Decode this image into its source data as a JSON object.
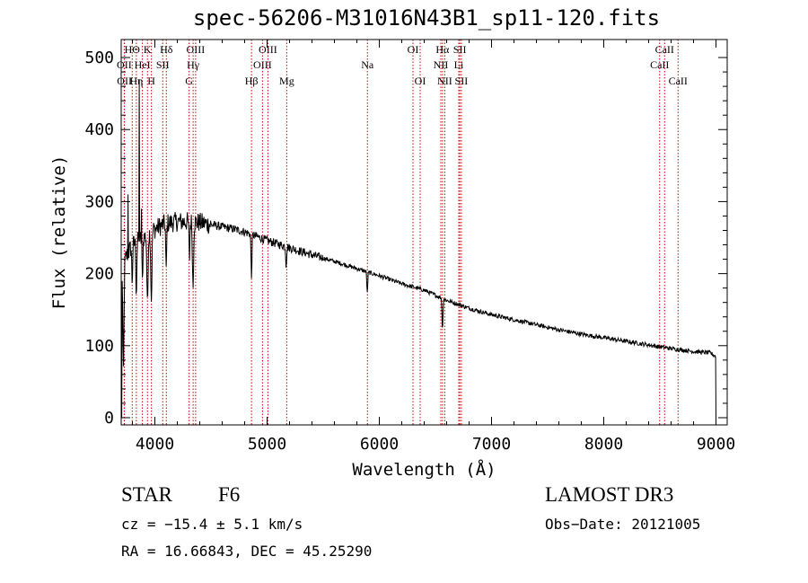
{
  "chart_data": {
    "type": "line",
    "title": "spec-56206-M31016N43B1_sp11-120.fits",
    "xlabel": "Wavelength (Å)",
    "ylabel": "Flux (relative)",
    "xlim": [
      3700,
      9100
    ],
    "ylim": [
      -10,
      525
    ],
    "xticks": [
      4000,
      5000,
      6000,
      7000,
      8000,
      9000
    ],
    "yticks": [
      0,
      100,
      200,
      300,
      400,
      500
    ],
    "series": [
      {
        "name": "spectrum",
        "continuum": [
          [
            3700,
            205
          ],
          [
            3750,
            225
          ],
          [
            3800,
            240
          ],
          [
            3900,
            250
          ],
          [
            4000,
            262
          ],
          [
            4100,
            270
          ],
          [
            4200,
            272
          ],
          [
            4300,
            272
          ],
          [
            4400,
            271
          ],
          [
            4500,
            268
          ],
          [
            4600,
            265
          ],
          [
            4700,
            262
          ],
          [
            4800,
            258
          ],
          [
            4900,
            252
          ],
          [
            5000,
            246
          ],
          [
            5200,
            236
          ],
          [
            5400,
            226
          ],
          [
            5600,
            217
          ],
          [
            5800,
            207
          ],
          [
            6000,
            197
          ],
          [
            6200,
            186
          ],
          [
            6400,
            177
          ],
          [
            6600,
            163
          ],
          [
            6800,
            152
          ],
          [
            7000,
            143
          ],
          [
            7200,
            136
          ],
          [
            7400,
            129
          ],
          [
            7600,
            122
          ],
          [
            7800,
            116
          ],
          [
            8000,
            111
          ],
          [
            8200,
            106
          ],
          [
            8400,
            101
          ],
          [
            8600,
            96
          ],
          [
            8800,
            92
          ],
          [
            8950,
            90
          ],
          [
            9000,
            85
          ]
        ],
        "absorption_features": [
          [
            3934,
            100
          ],
          [
            3969,
            95
          ],
          [
            3889,
            60
          ],
          [
            3835,
            70
          ],
          [
            3798,
            50
          ],
          [
            4101,
            70
          ],
          [
            4340,
            90
          ],
          [
            4308,
            50
          ],
          [
            4861,
            60
          ],
          [
            5170,
            25
          ],
          [
            5893,
            30
          ],
          [
            6563,
            45
          ],
          [
            3720,
            150
          ]
        ],
        "emission_spikes": [
          [
            3860,
            470
          ],
          [
            3760,
            310
          ],
          [
            3880,
            290
          ]
        ]
      }
    ],
    "lines": [
      {
        "label": "HΘ",
        "wave": 3798,
        "row": 0
      },
      {
        "label": "OII",
        "wave": 3727,
        "row": 1
      },
      {
        "label": "OII",
        "wave": 3729,
        "row": 2
      },
      {
        "label": "Hη",
        "wave": 3835,
        "row": 2
      },
      {
        "label": "HeI",
        "wave": 3889,
        "row": 1
      },
      {
        "label": "K",
        "wave": 3934,
        "row": 0
      },
      {
        "label": "SII",
        "wave": 4070,
        "row": 1
      },
      {
        "label": "H",
        "wave": 3969,
        "row": 2
      },
      {
        "label": "Hδ",
        "wave": 4102,
        "row": 0
      },
      {
        "label": "G",
        "wave": 4305,
        "row": 2
      },
      {
        "label": "OIII",
        "wave": 4363,
        "row": 0
      },
      {
        "label": "Hγ",
        "wave": 4341,
        "row": 1
      },
      {
        "label": "Hβ",
        "wave": 4861,
        "row": 2
      },
      {
        "label": "OIII",
        "wave": 5007,
        "row": 0
      },
      {
        "label": "OIII",
        "wave": 4959,
        "row": 1
      },
      {
        "label": "Mg",
        "wave": 5175,
        "row": 2
      },
      {
        "label": "Na",
        "wave": 5894,
        "row": 1
      },
      {
        "label": "OI",
        "wave": 6300,
        "row": 0
      },
      {
        "label": "OI",
        "wave": 6364,
        "row": 2
      },
      {
        "label": "Hα",
        "wave": 6563,
        "row": 0
      },
      {
        "label": "NII",
        "wave": 6548,
        "row": 1
      },
      {
        "label": "NII",
        "wave": 6583,
        "row": 2
      },
      {
        "label": "SII",
        "wave": 6717,
        "row": 0
      },
      {
        "label": "Li",
        "wave": 6708,
        "row": 1
      },
      {
        "label": "SII",
        "wave": 6731,
        "row": 2
      },
      {
        "label": "CaII",
        "wave": 8542,
        "row": 0
      },
      {
        "label": "CaII",
        "wave": 8498,
        "row": 1
      },
      {
        "label": "CaII",
        "wave": 8662,
        "row": 2
      }
    ]
  },
  "info": {
    "class": "STAR",
    "subclass": "F6",
    "survey": "LAMOST DR3",
    "cz": "cz = −15.4 ± 5.1 km/s",
    "obs_date": "Obs−Date: 20121005",
    "coords": "RA =  16.66843, DEC =  45.25290"
  }
}
